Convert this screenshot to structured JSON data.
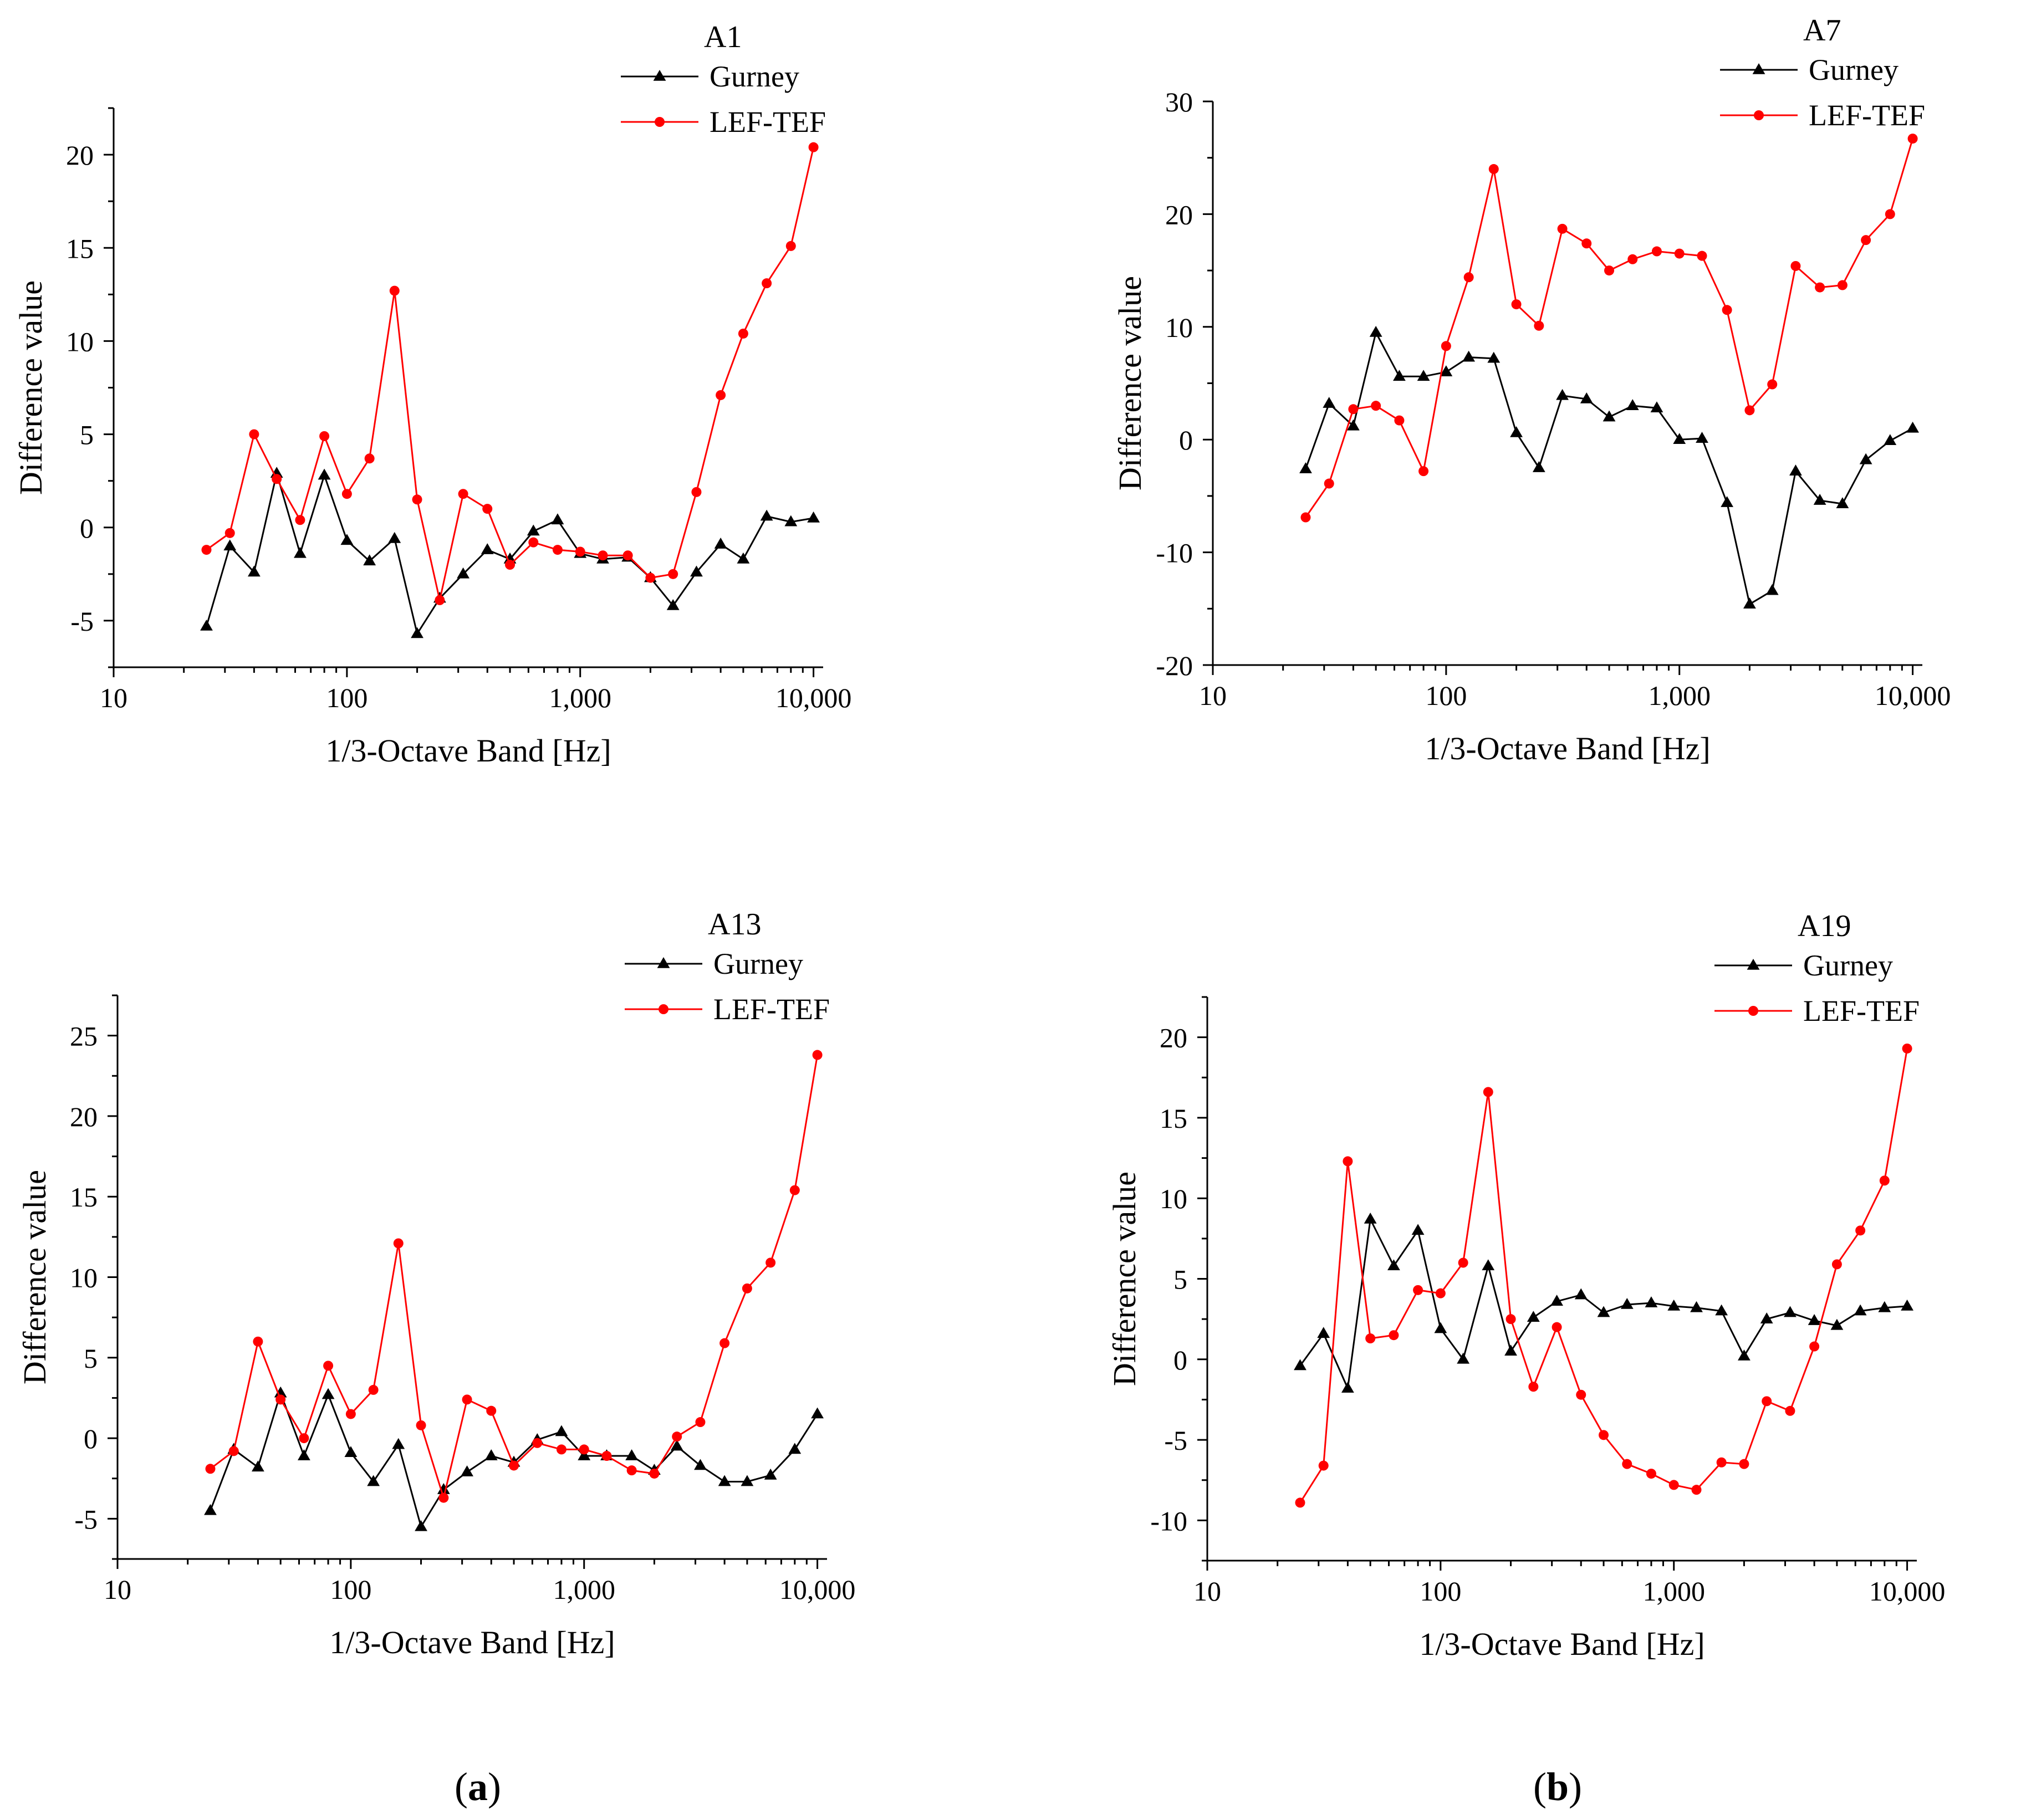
{
  "figure": {
    "panel_labels": [
      {
        "open": "(",
        "letter": "a",
        "close": ")"
      },
      {
        "open": "(",
        "letter": "b",
        "close": ")"
      }
    ]
  },
  "colors": {
    "gurney": "#000000",
    "lef_tef": "#ff0000",
    "axis": "#000000"
  },
  "chart_data": [
    {
      "type": "line",
      "title": "A1",
      "xlabel": "1/3-Octave Band [Hz]",
      "ylabel": "Difference value",
      "xscale": "log",
      "xlim": [
        10,
        11000
      ],
      "ylim": [
        -7.5,
        22.5
      ],
      "xticks": [
        10,
        100,
        1000,
        10000
      ],
      "xtick_labels": [
        "10",
        "100",
        "1,000",
        "10,000"
      ],
      "yticks": [
        -5,
        0,
        5,
        10,
        15,
        20
      ],
      "ytick_labels": [
        "-5",
        "0",
        "5",
        "10",
        "15",
        "20"
      ],
      "legend": "top-right",
      "x": [
        25,
        31.5,
        40,
        50,
        63,
        80,
        100,
        125,
        160,
        200,
        250,
        315,
        400,
        500,
        630,
        800,
        1000,
        1250,
        1600,
        2000,
        2500,
        3150,
        4000,
        5000,
        6300,
        8000,
        10000
      ],
      "series": [
        {
          "name": "Gurney",
          "marker": "triangle",
          "values": [
            -5.3,
            -1.0,
            -2.4,
            2.9,
            -1.4,
            2.8,
            -0.7,
            -1.8,
            -0.6,
            -5.7,
            -3.8,
            -2.5,
            -1.2,
            -1.7,
            -0.2,
            0.4,
            -1.4,
            -1.7,
            -1.6,
            -2.7,
            -4.2,
            -2.4,
            -0.9,
            -1.7,
            0.6,
            0.3,
            0.5
          ]
        },
        {
          "name": "LEF-TEF",
          "marker": "circle",
          "values": [
            -1.2,
            -0.3,
            5.0,
            2.6,
            0.4,
            4.9,
            1.8,
            3.7,
            12.7,
            1.5,
            -3.9,
            1.8,
            1.0,
            -2.0,
            -0.8,
            -1.2,
            -1.3,
            -1.5,
            -1.5,
            -2.7,
            -2.5,
            1.9,
            7.1,
            10.4,
            13.1,
            15.1,
            20.4
          ]
        }
      ]
    },
    {
      "type": "line",
      "title": "A7",
      "xlabel": "1/3-Octave Band [Hz]",
      "ylabel": "Difference value",
      "xscale": "log",
      "xlim": [
        10,
        11000
      ],
      "ylim": [
        -20,
        30
      ],
      "xticks": [
        10,
        100,
        1000,
        10000
      ],
      "xtick_labels": [
        "10",
        "100",
        "1,000",
        "10,000"
      ],
      "yticks": [
        -20,
        -10,
        0,
        10,
        20,
        30
      ],
      "ytick_labels": [
        "-20",
        "-10",
        "0",
        "10",
        "20",
        "30"
      ],
      "legend": "top-right",
      "x": [
        25,
        31.5,
        40,
        50,
        63,
        80,
        100,
        125,
        160,
        200,
        250,
        315,
        400,
        500,
        630,
        800,
        1000,
        1250,
        1600,
        2000,
        2500,
        3150,
        4000,
        5000,
        6300,
        8000,
        10000
      ],
      "series": [
        {
          "name": "Gurney",
          "marker": "triangle",
          "values": [
            -2.6,
            3.2,
            1.2,
            9.5,
            5.6,
            5.6,
            6.0,
            7.3,
            7.2,
            0.6,
            -2.5,
            3.9,
            3.6,
            2.0,
            3.0,
            2.8,
            0.0,
            0.1,
            -5.6,
            -14.6,
            -13.4,
            -2.8,
            -5.4,
            -5.7,
            -1.8,
            -0.1,
            1.0
          ]
        },
        {
          "name": "LEF-TEF",
          "marker": "circle",
          "values": [
            -6.9,
            -3.9,
            2.7,
            3.0,
            1.7,
            -2.8,
            8.3,
            14.4,
            24.0,
            12.0,
            10.1,
            18.7,
            17.4,
            15.0,
            16.0,
            16.7,
            16.5,
            16.3,
            11.5,
            2.6,
            4.9,
            15.4,
            13.5,
            13.7,
            17.7,
            20.0,
            26.7
          ]
        }
      ]
    },
    {
      "type": "line",
      "title": "A13",
      "xlabel": "1/3-Octave Band [Hz]",
      "ylabel": "Difference value",
      "xscale": "log",
      "xlim": [
        10,
        11000
      ],
      "ylim": [
        -7.5,
        27.5
      ],
      "xticks": [
        10,
        100,
        1000,
        10000
      ],
      "xtick_labels": [
        "10",
        "100",
        "1,000",
        "10,000"
      ],
      "yticks": [
        -5,
        0,
        5,
        10,
        15,
        20,
        25
      ],
      "ytick_labels": [
        "-5",
        "0",
        "5",
        "10",
        "15",
        "20",
        "25"
      ],
      "legend": "top-right",
      "x": [
        25,
        31.5,
        40,
        50,
        63,
        80,
        100,
        125,
        160,
        200,
        250,
        315,
        400,
        500,
        630,
        800,
        1000,
        1250,
        1600,
        2000,
        2500,
        3150,
        4000,
        5000,
        6300,
        8000,
        10000
      ],
      "series": [
        {
          "name": "Gurney",
          "marker": "triangle",
          "values": [
            -4.5,
            -0.7,
            -1.8,
            2.8,
            -1.1,
            2.7,
            -0.9,
            -2.7,
            -0.4,
            -5.5,
            -3.2,
            -2.1,
            -1.1,
            -1.5,
            -0.1,
            0.4,
            -1.1,
            -1.1,
            -1.1,
            -2.0,
            -0.5,
            -1.7,
            -2.7,
            -2.7,
            -2.3,
            -0.7,
            1.5
          ]
        },
        {
          "name": "LEF-TEF",
          "marker": "circle",
          "values": [
            -1.9,
            -0.8,
            6.0,
            2.4,
            0.0,
            4.5,
            1.5,
            3.0,
            12.1,
            0.8,
            -3.7,
            2.4,
            1.7,
            -1.7,
            -0.3,
            -0.7,
            -0.7,
            -1.1,
            -2.0,
            -2.2,
            0.1,
            1.0,
            5.9,
            9.3,
            10.9,
            15.4,
            23.8
          ]
        }
      ]
    },
    {
      "type": "line",
      "title": "A19",
      "xlabel": "1/3-Octave Band [Hz]",
      "ylabel": "Difference value",
      "xscale": "log",
      "xlim": [
        10,
        11000
      ],
      "ylim": [
        -12.5,
        22.5
      ],
      "xticks": [
        10,
        100,
        1000,
        10000
      ],
      "xtick_labels": [
        "10",
        "100",
        "1,000",
        "10,000"
      ],
      "yticks": [
        -10,
        -5,
        0,
        5,
        10,
        15,
        20
      ],
      "ytick_labels": [
        "-10",
        "-5",
        "0",
        "5",
        "10",
        "15",
        "20"
      ],
      "legend": "top-right",
      "x": [
        25,
        31.5,
        40,
        50,
        63,
        80,
        100,
        125,
        160,
        200,
        250,
        315,
        400,
        500,
        630,
        800,
        1000,
        1250,
        1600,
        2000,
        2500,
        3150,
        4000,
        5000,
        6300,
        8000,
        10000
      ],
      "series": [
        {
          "name": "Gurney",
          "marker": "triangle",
          "values": [
            -0.4,
            1.6,
            -1.8,
            8.7,
            5.8,
            8.0,
            1.9,
            0.0,
            5.8,
            0.5,
            2.6,
            3.6,
            4.0,
            2.9,
            3.4,
            3.5,
            3.3,
            3.2,
            3.0,
            0.2,
            2.5,
            2.9,
            2.4,
            2.1,
            3.0,
            3.2,
            3.3
          ]
        },
        {
          "name": "LEF-TEF",
          "marker": "circle",
          "values": [
            -8.9,
            -6.6,
            12.3,
            1.3,
            1.5,
            4.3,
            4.1,
            6.0,
            16.6,
            2.5,
            -1.7,
            2.0,
            -2.2,
            -4.7,
            -6.5,
            -7.1,
            -7.8,
            -8.1,
            -6.4,
            -6.5,
            -2.6,
            -3.2,
            0.8,
            5.9,
            8.0,
            11.1,
            19.3
          ]
        }
      ]
    }
  ]
}
